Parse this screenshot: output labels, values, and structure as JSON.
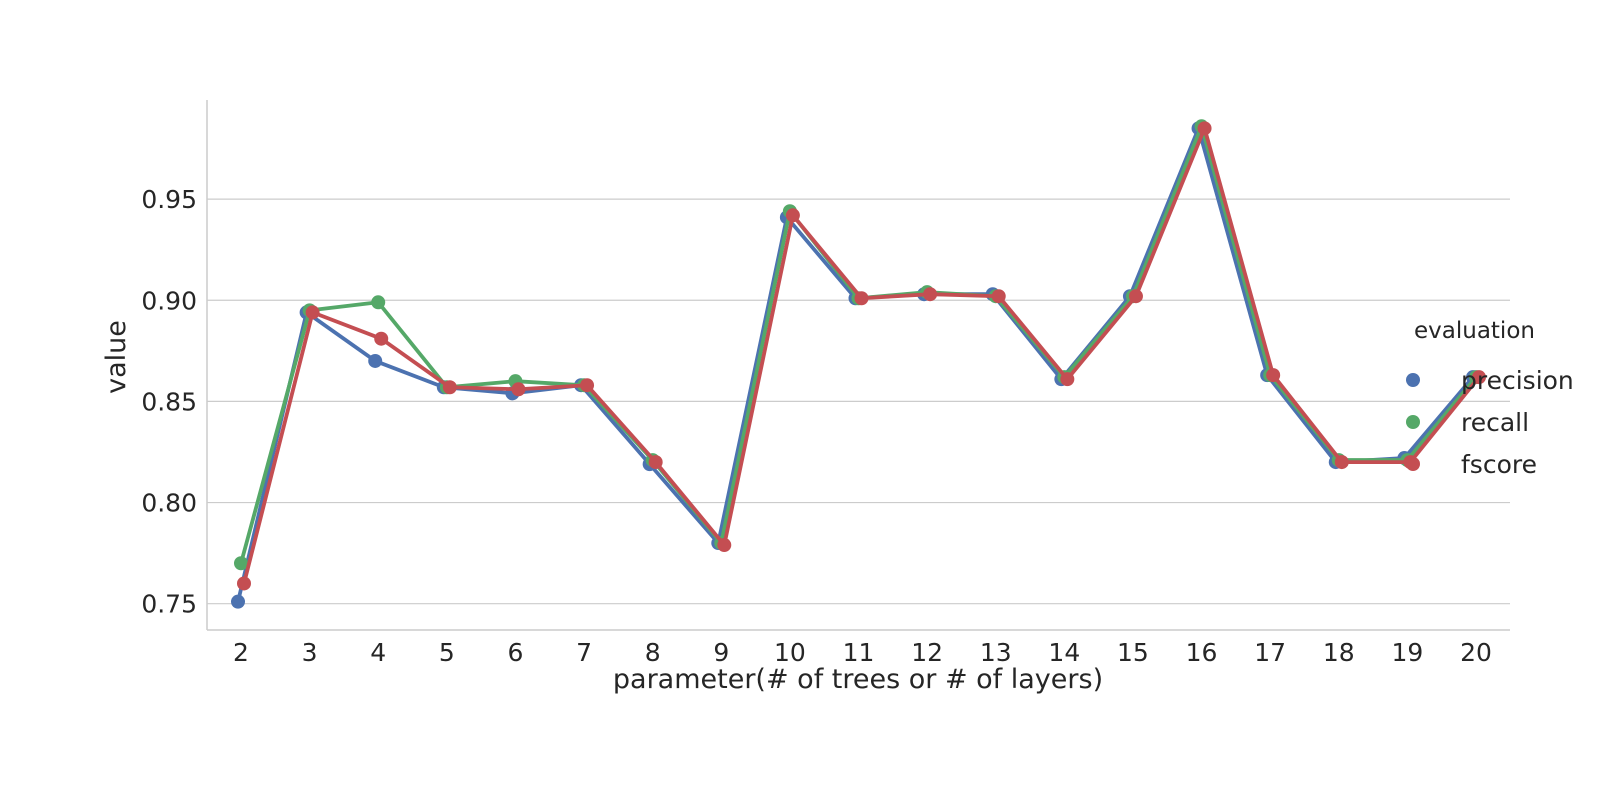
{
  "chart_data": {
    "type": "line",
    "xlabel": "parameter(# of trees or # of layers)",
    "ylabel": "value",
    "categories": [
      "2",
      "3",
      "4",
      "5",
      "6",
      "7",
      "8",
      "9",
      "10",
      "11",
      "12",
      "13",
      "14",
      "15",
      "16",
      "17",
      "18",
      "19",
      "20"
    ],
    "ylim": [
      0.737,
      0.999
    ],
    "yticks": [
      0.75,
      0.8,
      0.85,
      0.9,
      0.95
    ],
    "ytick_labels": [
      "0.75",
      "0.80",
      "0.85",
      "0.90",
      "0.95"
    ],
    "grid": "horizontal",
    "legend": {
      "title": "evaluation",
      "placement": "right"
    },
    "series": [
      {
        "name": "precision",
        "color": "#4c72b0",
        "values": [
          0.751,
          0.894,
          0.87,
          0.857,
          0.854,
          0.858,
          0.819,
          0.78,
          0.941,
          0.901,
          0.903,
          0.903,
          0.861,
          0.902,
          0.985,
          0.863,
          0.82,
          0.822,
          0.862
        ]
      },
      {
        "name": "recall",
        "color": "#55a868",
        "values": [
          0.77,
          0.895,
          0.899,
          0.857,
          0.86,
          0.858,
          0.821,
          0.78,
          0.944,
          0.901,
          0.904,
          0.902,
          0.862,
          0.902,
          0.986,
          0.863,
          0.821,
          0.821,
          0.862
        ]
      },
      {
        "name": "fscore",
        "color": "#c44e52",
        "values": [
          0.76,
          0.894,
          0.881,
          0.857,
          0.856,
          0.858,
          0.82,
          0.779,
          0.942,
          0.901,
          0.903,
          0.902,
          0.861,
          0.902,
          0.985,
          0.863,
          0.82,
          0.82,
          0.862
        ]
      }
    ]
  }
}
